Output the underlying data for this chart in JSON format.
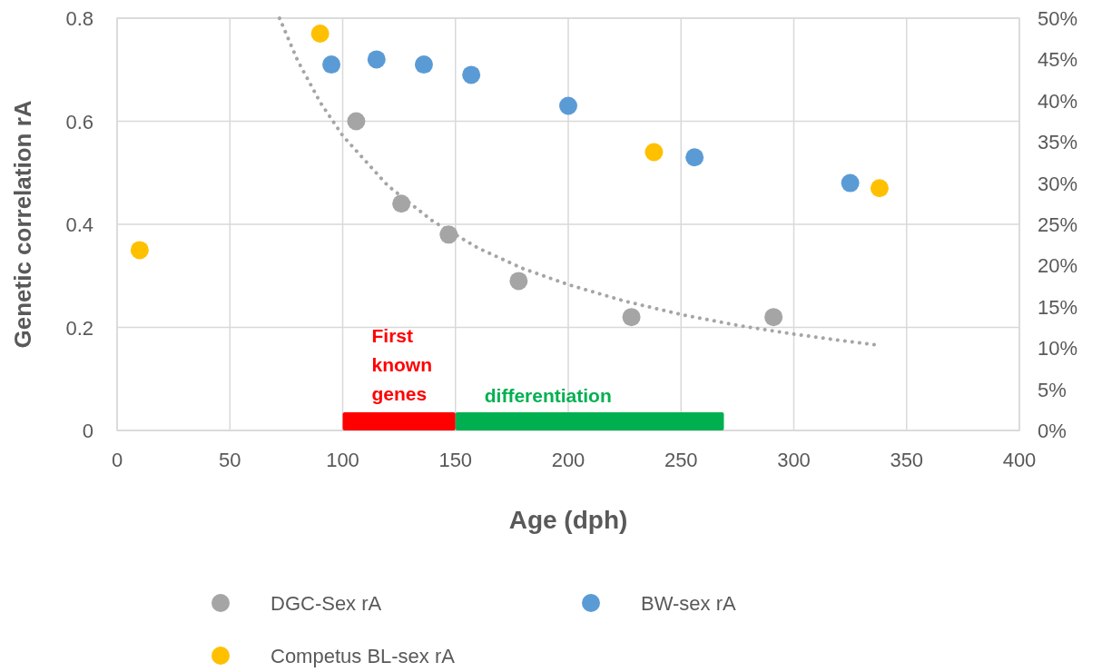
{
  "chart_data": {
    "type": "scatter",
    "xlabel": "Age (dph)",
    "ylabel": "Genetic correlation rA",
    "xlim": [
      0,
      400
    ],
    "xticks": [
      0,
      50,
      100,
      150,
      200,
      250,
      300,
      350,
      400
    ],
    "ylim": [
      0,
      0.8
    ],
    "yticks": [
      {
        "value": 0,
        "label": "0"
      },
      {
        "value": 0.2,
        "label": "0.2"
      },
      {
        "value": 0.4,
        "label": "0.4"
      },
      {
        "value": 0.6,
        "label": "0.6"
      },
      {
        "value": 0.8,
        "label": "0.8"
      }
    ],
    "y2lim": [
      0,
      50
    ],
    "y2ticks": [
      {
        "value": 0,
        "label": "0%"
      },
      {
        "value": 5,
        "label": "5%"
      },
      {
        "value": 10,
        "label": "10%"
      },
      {
        "value": 15,
        "label": "15%"
      },
      {
        "value": 20,
        "label": "20%"
      },
      {
        "value": 25,
        "label": "25%"
      },
      {
        "value": 30,
        "label": "30%"
      },
      {
        "value": 35,
        "label": "35%"
      },
      {
        "value": 40,
        "label": "40%"
      },
      {
        "value": 45,
        "label": "45%"
      },
      {
        "value": 50,
        "label": "50%"
      }
    ],
    "grid": true,
    "legend": "bottom",
    "marker": "circle",
    "series": [
      {
        "name": "DGC-Sex rA",
        "color": "#a5a5a5",
        "x": [
          106,
          126,
          147,
          178,
          228,
          291
        ],
        "values": [
          0.6,
          0.44,
          0.38,
          0.29,
          0.22,
          0.22
        ]
      },
      {
        "name": "BW-sex rA",
        "color": "#5b9bd5",
        "x": [
          95,
          115,
          136,
          157,
          200,
          256,
          325
        ],
        "values": [
          0.71,
          0.72,
          0.71,
          0.69,
          0.63,
          0.53,
          0.48
        ]
      },
      {
        "name": "Competus BL-sex rA",
        "color": "#ffc000",
        "x": [
          10,
          90,
          238,
          338
        ],
        "values": [
          0.35,
          0.77,
          0.54,
          0.47
        ]
      },
      {
        "type": "line",
        "color": "#a5a5a5",
        "line_style": "dotted",
        "marker": "none",
        "x": [
          72,
          80,
          90,
          100,
          120,
          140,
          160,
          180,
          200,
          225,
          250,
          275,
          300,
          320,
          338
        ],
        "values": [
          0.8,
          0.718,
          0.637,
          0.572,
          0.475,
          0.406,
          0.354,
          0.314,
          0.283,
          0.251,
          0.225,
          0.204,
          0.187,
          0.175,
          0.165
        ]
      }
    ],
    "bands": [
      {
        "axis": "x",
        "from": 100,
        "to": 150,
        "label": "First known genes",
        "color": "#ff0000"
      },
      {
        "axis": "x",
        "from": 150,
        "to": 269,
        "label": "differentiation",
        "color": "#00b050"
      }
    ]
  }
}
